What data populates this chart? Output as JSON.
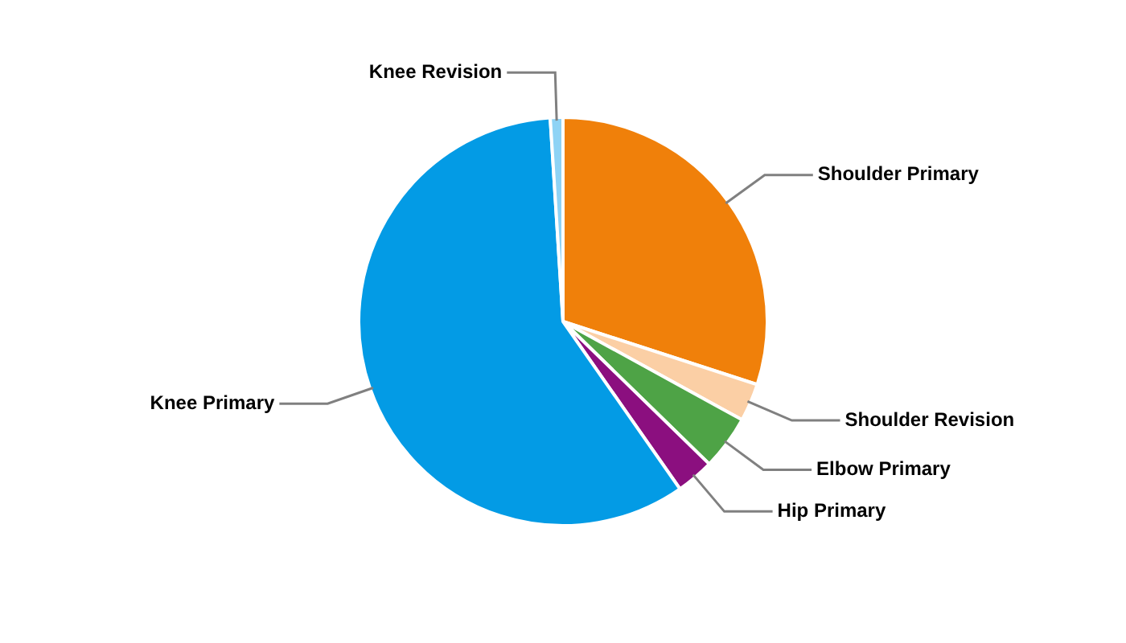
{
  "chart_data": {
    "type": "pie",
    "categories": [
      "Shoulder Primary",
      "Shoulder Revision",
      "Elbow Primary",
      "Hip Primary",
      "Knee Primary",
      "Knee Revision"
    ],
    "values": [
      30,
      3,
      4.3,
      3,
      58.7,
      1
    ],
    "colors": [
      "#f0800a",
      "#fbcfa5",
      "#4ea346",
      "#8b0f7f",
      "#039be5",
      "#8ed3f5"
    ]
  }
}
